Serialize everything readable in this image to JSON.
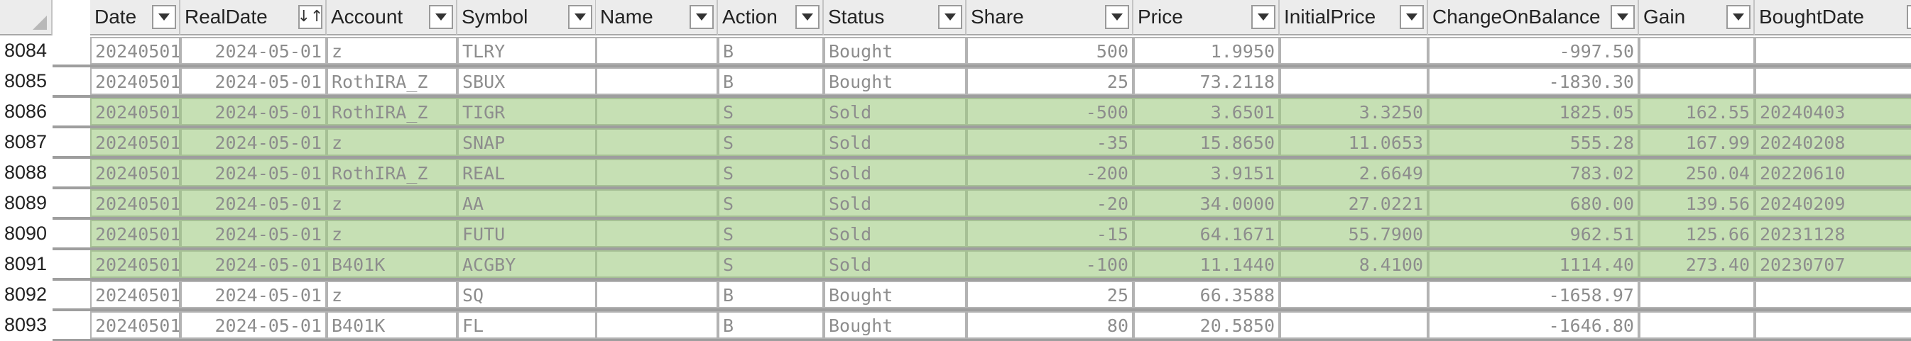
{
  "columns": [
    {
      "key": "Date",
      "label": "Date",
      "filter": "dropdown"
    },
    {
      "key": "RealDate",
      "label": "RealDate",
      "filter": "sorted-ascending"
    },
    {
      "key": "Account",
      "label": "Account",
      "filter": "dropdown"
    },
    {
      "key": "Symbol",
      "label": "Symbol",
      "filter": "dropdown"
    },
    {
      "key": "Name",
      "label": "Name",
      "filter": "dropdown"
    },
    {
      "key": "Action",
      "label": "Action",
      "filter": "dropdown"
    },
    {
      "key": "Status",
      "label": "Status",
      "filter": "dropdown"
    },
    {
      "key": "Share",
      "label": "Share",
      "filter": "dropdown"
    },
    {
      "key": "Price",
      "label": "Price",
      "filter": "dropdown"
    },
    {
      "key": "InitialPrice",
      "label": "InitialPrice",
      "filter": "dropdown"
    },
    {
      "key": "ChangeOnBalance",
      "label": "ChangeOnBalance",
      "filter": "dropdown"
    },
    {
      "key": "Gain",
      "label": "Gain",
      "filter": "dropdown"
    },
    {
      "key": "BoughtDate",
      "label": "BoughtDate",
      "filter": "dropdown"
    }
  ],
  "rows": [
    {
      "rownum": "8084",
      "Date": "20240501",
      "RealDate": "2024-05-01",
      "Account": "z",
      "Symbol": "TLRY",
      "Name": "",
      "Action": "B",
      "Status": "Bought",
      "Share": "500",
      "Price": "1.9950",
      "InitialPrice": "",
      "ChangeOnBalance": "-997.50",
      "Gain": "",
      "BoughtDate": ""
    },
    {
      "rownum": "8085",
      "Date": "20240501",
      "RealDate": "2024-05-01",
      "Account": "RothIRA_Z",
      "Symbol": "SBUX",
      "Name": "",
      "Action": "B",
      "Status": "Bought",
      "Share": "25",
      "Price": "73.2118",
      "InitialPrice": "",
      "ChangeOnBalance": "-1830.30",
      "Gain": "",
      "BoughtDate": ""
    },
    {
      "rownum": "8086",
      "Date": "20240501",
      "RealDate": "2024-05-01",
      "Account": "RothIRA_Z",
      "Symbol": "TIGR",
      "Name": "",
      "Action": "S",
      "Status": "Sold",
      "Share": "-500",
      "Price": "3.6501",
      "InitialPrice": "3.3250",
      "ChangeOnBalance": "1825.05",
      "Gain": "162.55",
      "BoughtDate": "20240403"
    },
    {
      "rownum": "8087",
      "Date": "20240501",
      "RealDate": "2024-05-01",
      "Account": "z",
      "Symbol": "SNAP",
      "Name": "",
      "Action": "S",
      "Status": "Sold",
      "Share": "-35",
      "Price": "15.8650",
      "InitialPrice": "11.0653",
      "ChangeOnBalance": "555.28",
      "Gain": "167.99",
      "BoughtDate": "20240208"
    },
    {
      "rownum": "8088",
      "Date": "20240501",
      "RealDate": "2024-05-01",
      "Account": "RothIRA_Z",
      "Symbol": "REAL",
      "Name": "",
      "Action": "S",
      "Status": "Sold",
      "Share": "-200",
      "Price": "3.9151",
      "InitialPrice": "2.6649",
      "ChangeOnBalance": "783.02",
      "Gain": "250.04",
      "BoughtDate": "20220610"
    },
    {
      "rownum": "8089",
      "Date": "20240501",
      "RealDate": "2024-05-01",
      "Account": "z",
      "Symbol": "AA",
      "Name": "",
      "Action": "S",
      "Status": "Sold",
      "Share": "-20",
      "Price": "34.0000",
      "InitialPrice": "27.0221",
      "ChangeOnBalance": "680.00",
      "Gain": "139.56",
      "BoughtDate": "20240209"
    },
    {
      "rownum": "8090",
      "Date": "20240501",
      "RealDate": "2024-05-01",
      "Account": "z",
      "Symbol": "FUTU",
      "Name": "",
      "Action": "S",
      "Status": "Sold",
      "Share": "-15",
      "Price": "64.1671",
      "InitialPrice": "55.7900",
      "ChangeOnBalance": "962.51",
      "Gain": "125.66",
      "BoughtDate": "20231128"
    },
    {
      "rownum": "8091",
      "Date": "20240501",
      "RealDate": "2024-05-01",
      "Account": "B401K",
      "Symbol": "ACGBY",
      "Name": "",
      "Action": "S",
      "Status": "Sold",
      "Share": "-100",
      "Price": "11.1440",
      "InitialPrice": "8.4100",
      "ChangeOnBalance": "1114.40",
      "Gain": "273.40",
      "BoughtDate": "20230707"
    },
    {
      "rownum": "8092",
      "Date": "20240501",
      "RealDate": "2024-05-01",
      "Account": "z",
      "Symbol": "SQ",
      "Name": "",
      "Action": "B",
      "Status": "Bought",
      "Share": "25",
      "Price": "66.3588",
      "InitialPrice": "",
      "ChangeOnBalance": "-1658.97",
      "Gain": "",
      "BoughtDate": ""
    },
    {
      "rownum": "8093",
      "Date": "20240501",
      "RealDate": "2024-05-01",
      "Account": "B401K",
      "Symbol": "FL",
      "Name": "",
      "Action": "B",
      "Status": "Bought",
      "Share": "80",
      "Price": "20.5850",
      "InitialPrice": "",
      "ChangeOnBalance": "-1646.80",
      "Gain": "",
      "BoughtDate": ""
    }
  ],
  "colors": {
    "sold_fill": "#c6e0b4",
    "bought_fill": "#ffffff",
    "header_fill": "#ececec",
    "cell_text": "#8d8d8d"
  }
}
